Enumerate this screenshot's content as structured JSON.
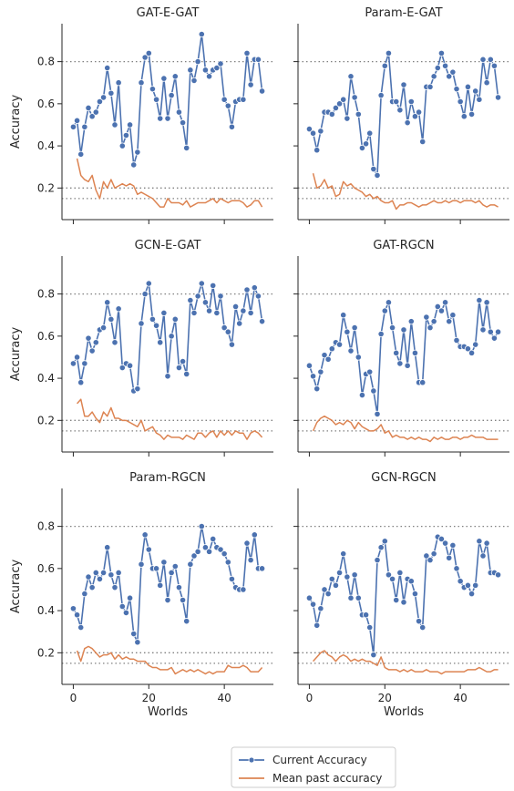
{
  "figure": {
    "legend": [
      {
        "label": "Current Accuracy",
        "color": "#4c72b0",
        "marker": "circle"
      },
      {
        "label": "Mean past accuracy",
        "color": "#dd8452",
        "marker": "none"
      }
    ]
  },
  "chart_data": {
    "type": "line",
    "grid": false,
    "legend_position": "bottom-center",
    "xlabel": "Worlds",
    "ylabel": "Accuracy",
    "xlim": [
      -3,
      53
    ],
    "ylim": [
      0.05,
      0.98
    ],
    "xticks": [
      0,
      20,
      40
    ],
    "yticks": [
      0.2,
      0.4,
      0.6,
      0.8
    ],
    "reference_lines": [
      0.8,
      0.2,
      0.15
    ],
    "x": [
      0,
      1,
      2,
      3,
      4,
      5,
      6,
      7,
      8,
      9,
      10,
      11,
      12,
      13,
      14,
      15,
      16,
      17,
      18,
      19,
      20,
      21,
      22,
      23,
      24,
      25,
      26,
      27,
      28,
      29,
      30,
      31,
      32,
      33,
      34,
      35,
      36,
      37,
      38,
      39,
      40,
      41,
      42,
      43,
      44,
      45,
      46,
      47,
      48,
      49,
      50
    ],
    "panels": [
      {
        "title": "GAT-E-GAT",
        "series": [
          {
            "name": "Current Accuracy",
            "values": [
              0.49,
              0.52,
              0.36,
              0.49,
              0.58,
              0.54,
              0.56,
              0.61,
              0.63,
              0.77,
              0.65,
              0.5,
              0.7,
              0.4,
              0.45,
              0.5,
              0.31,
              0.37,
              0.7,
              0.82,
              0.84,
              0.67,
              0.62,
              0.53,
              0.72,
              0.53,
              0.64,
              0.73,
              0.56,
              0.51,
              0.39,
              0.76,
              0.71,
              0.8,
              0.93,
              0.76,
              0.73,
              0.76,
              0.77,
              0.79,
              0.62,
              0.59,
              0.49,
              0.61,
              0.62,
              0.62,
              0.84,
              0.69,
              0.81,
              0.81,
              0.66
            ]
          },
          {
            "name": "Mean past accuracy",
            "values": [
              null,
              0.34,
              0.26,
              0.24,
              0.23,
              0.26,
              0.19,
              0.15,
              0.23,
              0.2,
              0.24,
              0.2,
              0.21,
              0.22,
              0.21,
              0.22,
              0.21,
              0.17,
              0.18,
              0.17,
              0.16,
              0.15,
              0.13,
              0.11,
              0.11,
              0.15,
              0.13,
              0.13,
              0.13,
              0.12,
              0.14,
              0.11,
              0.12,
              0.13,
              0.13,
              0.13,
              0.14,
              0.15,
              0.13,
              0.15,
              0.14,
              0.13,
              0.14,
              0.14,
              0.14,
              0.13,
              0.11,
              0.12,
              0.14,
              0.14,
              0.11
            ]
          }
        ]
      },
      {
        "title": "Param-E-GAT",
        "series": [
          {
            "name": "Current Accuracy",
            "values": [
              0.48,
              0.46,
              0.38,
              0.47,
              0.56,
              0.56,
              0.55,
              0.58,
              0.6,
              0.62,
              0.53,
              0.73,
              0.63,
              0.55,
              0.39,
              0.41,
              0.46,
              0.29,
              0.26,
              0.64,
              0.78,
              0.84,
              0.61,
              0.61,
              0.57,
              0.69,
              0.51,
              0.61,
              0.54,
              0.56,
              0.42,
              0.68,
              0.68,
              0.73,
              0.77,
              0.84,
              0.78,
              0.73,
              0.75,
              0.67,
              0.61,
              0.54,
              0.68,
              0.55,
              0.66,
              0.62,
              0.81,
              0.7,
              0.81,
              0.78,
              0.63
            ]
          },
          {
            "name": "Mean past accuracy",
            "values": [
              null,
              0.27,
              0.2,
              0.21,
              0.24,
              0.2,
              0.21,
              0.16,
              0.17,
              0.23,
              0.21,
              0.22,
              0.2,
              0.19,
              0.18,
              0.16,
              0.17,
              0.15,
              0.16,
              0.14,
              0.13,
              0.13,
              0.14,
              0.1,
              0.12,
              0.12,
              0.13,
              0.13,
              0.12,
              0.11,
              0.12,
              0.12,
              0.13,
              0.14,
              0.13,
              0.13,
              0.14,
              0.13,
              0.14,
              0.14,
              0.13,
              0.14,
              0.14,
              0.14,
              0.13,
              0.14,
              0.12,
              0.11,
              0.12,
              0.12,
              0.11
            ]
          }
        ]
      },
      {
        "title": "GCN-E-GAT",
        "series": [
          {
            "name": "Current Accuracy",
            "values": [
              0.47,
              0.5,
              0.38,
              0.47,
              0.59,
              0.53,
              0.57,
              0.63,
              0.64,
              0.76,
              0.68,
              0.57,
              0.73,
              0.45,
              0.47,
              0.46,
              0.34,
              0.35,
              0.66,
              0.8,
              0.85,
              0.68,
              0.65,
              0.57,
              0.71,
              0.41,
              0.6,
              0.68,
              0.45,
              0.48,
              0.42,
              0.77,
              0.71,
              0.79,
              0.85,
              0.76,
              0.72,
              0.84,
              0.71,
              0.79,
              0.64,
              0.62,
              0.56,
              0.74,
              0.66,
              0.72,
              0.82,
              0.71,
              0.83,
              0.79,
              0.67
            ]
          },
          {
            "name": "Mean past accuracy",
            "values": [
              null,
              0.28,
              0.3,
              0.22,
              0.22,
              0.24,
              0.21,
              0.19,
              0.24,
              0.22,
              0.26,
              0.21,
              0.21,
              0.2,
              0.2,
              0.19,
              0.18,
              0.17,
              0.2,
              0.15,
              0.16,
              0.17,
              0.14,
              0.13,
              0.11,
              0.13,
              0.12,
              0.12,
              0.12,
              0.11,
              0.13,
              0.12,
              0.11,
              0.14,
              0.14,
              0.12,
              0.14,
              0.15,
              0.12,
              0.15,
              0.13,
              0.15,
              0.13,
              0.15,
              0.14,
              0.14,
              0.11,
              0.14,
              0.15,
              0.14,
              0.12
            ]
          }
        ]
      },
      {
        "title": "GAT-RGCN",
        "series": [
          {
            "name": "Current Accuracy",
            "values": [
              0.46,
              0.41,
              0.35,
              0.43,
              0.51,
              0.49,
              0.54,
              0.57,
              0.56,
              0.7,
              0.62,
              0.53,
              0.64,
              0.5,
              0.32,
              0.42,
              0.43,
              0.34,
              0.23,
              0.61,
              0.72,
              0.76,
              0.64,
              0.52,
              0.47,
              0.63,
              0.46,
              0.67,
              0.52,
              0.38,
              0.38,
              0.69,
              0.64,
              0.67,
              0.74,
              0.72,
              0.76,
              0.67,
              0.7,
              0.58,
              0.55,
              0.55,
              0.54,
              0.52,
              0.56,
              0.77,
              0.63,
              0.76,
              0.62,
              0.59,
              0.62
            ]
          },
          {
            "name": "Mean past accuracy",
            "values": [
              null,
              0.15,
              0.19,
              0.21,
              0.22,
              0.21,
              0.2,
              0.18,
              0.19,
              0.18,
              0.2,
              0.19,
              0.16,
              0.19,
              0.17,
              0.16,
              0.15,
              0.15,
              0.16,
              0.18,
              0.14,
              0.15,
              0.12,
              0.13,
              0.12,
              0.12,
              0.11,
              0.12,
              0.11,
              0.12,
              0.11,
              0.11,
              0.1,
              0.12,
              0.11,
              0.12,
              0.11,
              0.11,
              0.12,
              0.12,
              0.11,
              0.12,
              0.12,
              0.13,
              0.12,
              0.12,
              0.12,
              0.11,
              0.11,
              0.11,
              0.11
            ]
          }
        ]
      },
      {
        "title": "Param-RGCN",
        "series": [
          {
            "name": "Current Accuracy",
            "values": [
              0.41,
              0.38,
              0.32,
              0.48,
              0.56,
              0.51,
              0.58,
              0.55,
              0.58,
              0.7,
              0.57,
              0.51,
              0.58,
              0.42,
              0.39,
              0.46,
              0.29,
              0.25,
              0.62,
              0.76,
              0.69,
              0.6,
              0.6,
              0.52,
              0.63,
              0.45,
              0.58,
              0.61,
              0.51,
              0.45,
              0.35,
              0.62,
              0.66,
              0.68,
              0.8,
              0.7,
              0.68,
              0.74,
              0.7,
              0.69,
              0.67,
              0.63,
              0.55,
              0.51,
              0.5,
              0.5,
              0.72,
              0.64,
              0.76,
              0.6,
              0.6
            ]
          },
          {
            "name": "Mean past accuracy",
            "values": [
              null,
              0.21,
              0.16,
              0.22,
              0.23,
              0.22,
              0.2,
              0.18,
              0.19,
              0.19,
              0.2,
              0.17,
              0.19,
              0.17,
              0.18,
              0.17,
              0.17,
              0.16,
              0.16,
              0.16,
              0.14,
              0.13,
              0.13,
              0.12,
              0.12,
              0.12,
              0.13,
              0.1,
              0.11,
              0.12,
              0.11,
              0.12,
              0.11,
              0.12,
              0.11,
              0.1,
              0.11,
              0.1,
              0.11,
              0.11,
              0.11,
              0.14,
              0.13,
              0.13,
              0.13,
              0.14,
              0.13,
              0.11,
              0.11,
              0.11,
              0.13
            ]
          }
        ]
      },
      {
        "title": "GCN-RGCN",
        "series": [
          {
            "name": "Current Accuracy",
            "values": [
              0.46,
              0.43,
              0.33,
              0.41,
              0.5,
              0.48,
              0.55,
              0.52,
              0.58,
              0.67,
              0.56,
              0.46,
              0.57,
              0.46,
              0.38,
              0.38,
              0.32,
              0.19,
              0.64,
              0.7,
              0.73,
              0.57,
              0.55,
              0.45,
              0.58,
              0.44,
              0.55,
              0.54,
              0.48,
              0.35,
              0.32,
              0.66,
              0.64,
              0.67,
              0.75,
              0.74,
              0.72,
              0.65,
              0.71,
              0.6,
              0.54,
              0.51,
              0.52,
              0.48,
              0.52,
              0.73,
              0.66,
              0.72,
              0.58,
              0.58,
              0.57
            ]
          },
          {
            "name": "Mean past accuracy",
            "values": [
              null,
              0.16,
              0.18,
              0.2,
              0.21,
              0.19,
              0.18,
              0.16,
              0.18,
              0.19,
              0.18,
              0.16,
              0.17,
              0.16,
              0.17,
              0.16,
              0.16,
              0.15,
              0.14,
              0.18,
              0.13,
              0.12,
              0.12,
              0.12,
              0.11,
              0.12,
              0.11,
              0.12,
              0.11,
              0.11,
              0.11,
              0.12,
              0.11,
              0.11,
              0.11,
              0.1,
              0.11,
              0.11,
              0.11,
              0.11,
              0.11,
              0.11,
              0.12,
              0.12,
              0.12,
              0.13,
              0.12,
              0.11,
              0.11,
              0.12,
              0.12
            ]
          }
        ]
      }
    ]
  }
}
